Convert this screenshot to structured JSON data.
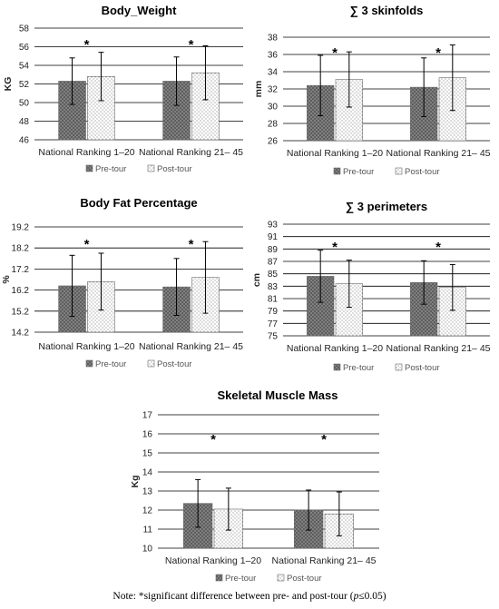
{
  "chart_data": [
    {
      "id": "body-weight",
      "type": "bar",
      "title": "Body_Weight",
      "ylabel": "KG",
      "ylim": [
        46,
        58
      ],
      "ytick_step": 2,
      "ytick_decimals": 0,
      "categories": [
        "National Ranking 1–20",
        "National Ranking 21– 45"
      ],
      "series": [
        {
          "name": "Pre-tour",
          "values": [
            52.3,
            52.3
          ],
          "errors": [
            2.5,
            2.6
          ]
        },
        {
          "name": "Post-tour",
          "values": [
            52.8,
            53.2
          ],
          "errors": [
            2.6,
            2.9
          ]
        }
      ],
      "annotations": [
        "*",
        "*"
      ],
      "legend": "bottom"
    },
    {
      "id": "skinfolds",
      "type": "bar",
      "title": "∑ 3 skinfolds",
      "ylabel": "mm",
      "ylim": [
        26,
        38
      ],
      "ytick_step": 2,
      "ytick_decimals": 0,
      "categories": [
        "National Ranking 1–20",
        "National Ranking 21– 45"
      ],
      "series": [
        {
          "name": "Pre-tour",
          "values": [
            32.4,
            32.2
          ],
          "errors": [
            3.5,
            3.4
          ]
        },
        {
          "name": "Post-tour",
          "values": [
            33.1,
            33.3
          ],
          "errors": [
            3.2,
            3.8
          ]
        }
      ],
      "annotations": [
        "*",
        "*"
      ],
      "legend": "bottom"
    },
    {
      "id": "body-fat",
      "type": "bar",
      "title": "Body Fat Percentage",
      "ylabel": "%",
      "ylim": [
        14.2,
        19.2
      ],
      "ytick_step": 1,
      "ytick_decimals": 1,
      "categories": [
        "National Ranking 1–20",
        "National Ranking 21– 45"
      ],
      "series": [
        {
          "name": "Pre-tour",
          "values": [
            16.4,
            16.35
          ],
          "errors": [
            1.45,
            1.35
          ]
        },
        {
          "name": "Post-tour",
          "values": [
            16.6,
            16.8
          ],
          "errors": [
            1.35,
            1.7
          ]
        }
      ],
      "annotations": [
        "*",
        "*"
      ],
      "legend": "bottom"
    },
    {
      "id": "perimeters",
      "type": "bar",
      "title": "∑ 3 perimeters",
      "ylabel": "cm",
      "ylim": [
        75,
        93
      ],
      "ytick_step": 2,
      "ytick_decimals": 0,
      "categories": [
        "National Ranking 1–20",
        "National Ranking 21– 45"
      ],
      "series": [
        {
          "name": "Pre-tour",
          "values": [
            84.6,
            83.6
          ],
          "errors": [
            4.2,
            3.5
          ]
        },
        {
          "name": "Post-tour",
          "values": [
            83.4,
            82.8
          ],
          "errors": [
            3.8,
            3.7
          ]
        }
      ],
      "annotations": [
        "*",
        "*"
      ],
      "legend": "bottom"
    },
    {
      "id": "skeletal-muscle",
      "type": "bar",
      "title": "Skeletal Muscle Mass",
      "ylabel": "Kg",
      "ylim": [
        10,
        17
      ],
      "ytick_step": 1,
      "ytick_decimals": 0,
      "categories": [
        "National Ranking 1–20",
        "National Ranking 21– 45"
      ],
      "series": [
        {
          "name": "Pre-tour",
          "values": [
            12.35,
            12.0
          ],
          "errors": [
            1.25,
            1.05
          ]
        },
        {
          "name": "Post-tour",
          "values": [
            12.05,
            11.8
          ],
          "errors": [
            1.1,
            1.15
          ]
        }
      ],
      "annotations": [
        "*",
        "*"
      ],
      "legend": "bottom"
    }
  ],
  "note": "Note: *significant difference between pre- and post-tour (p≤0.05)"
}
